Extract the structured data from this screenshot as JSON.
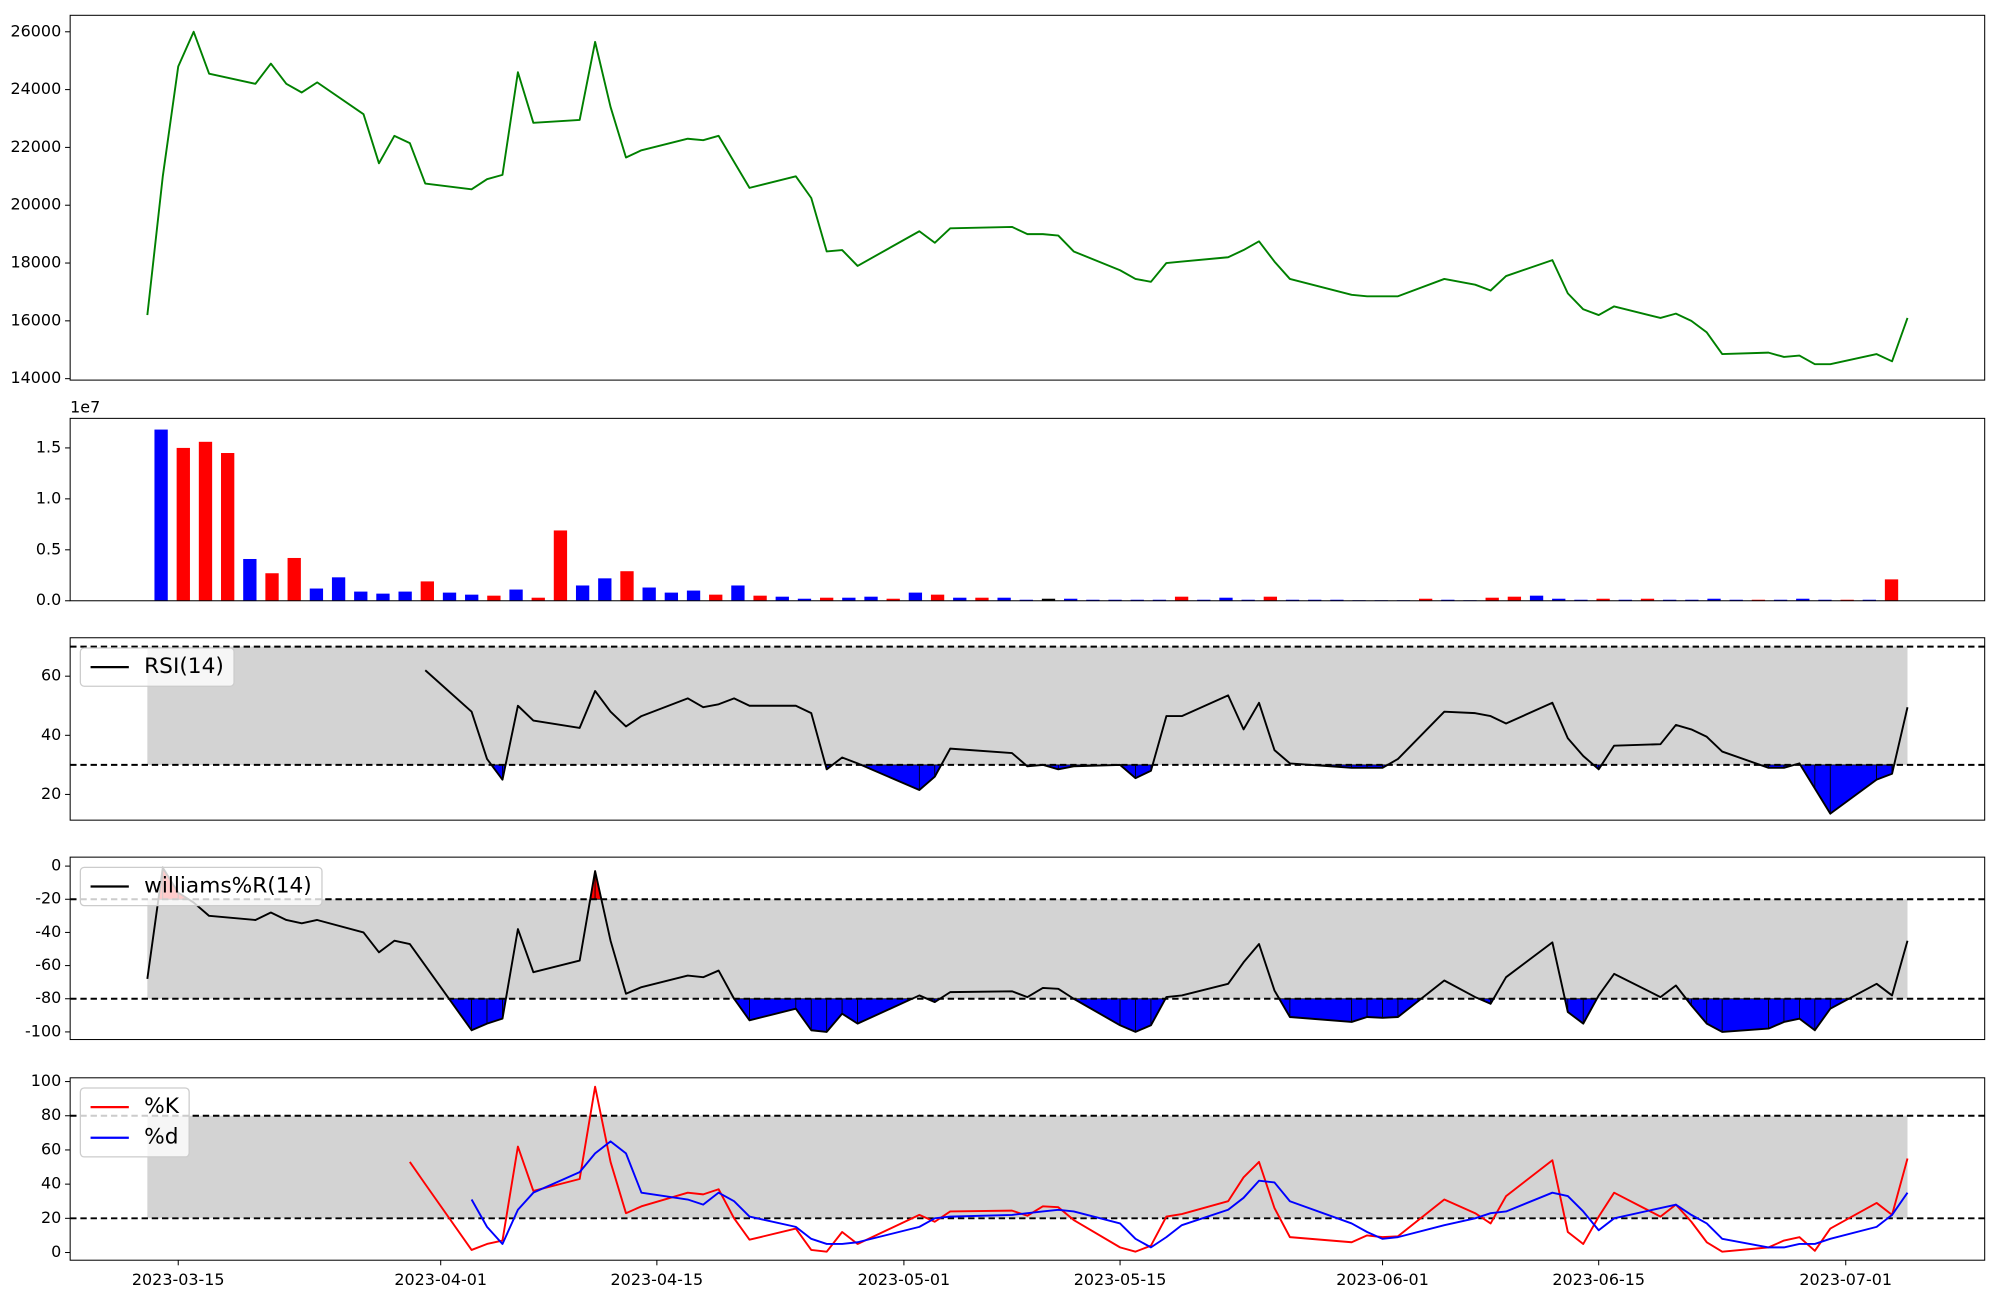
{
  "chart_data": [
    {
      "type": "line",
      "x": [
        "2023-03-13",
        "2023-03-14",
        "2023-03-15",
        "2023-03-16",
        "2023-03-17",
        "2023-03-20",
        "2023-03-21",
        "2023-03-22",
        "2023-03-23",
        "2023-03-24",
        "2023-03-27",
        "2023-03-28",
        "2023-03-29",
        "2023-03-30",
        "2023-03-31",
        "2023-04-03",
        "2023-04-04",
        "2023-04-05",
        "2023-04-06",
        "2023-04-07",
        "2023-04-10",
        "2023-04-11",
        "2023-04-12",
        "2023-04-13",
        "2023-04-14",
        "2023-04-17",
        "2023-04-18",
        "2023-04-19",
        "2023-04-20",
        "2023-04-21",
        "2023-04-24",
        "2023-04-25",
        "2023-04-26",
        "2023-04-27",
        "2023-04-28",
        "2023-05-02",
        "2023-05-03",
        "2023-05-04",
        "2023-05-08",
        "2023-05-09",
        "2023-05-10",
        "2023-05-11",
        "2023-05-12",
        "2023-05-15",
        "2023-05-16",
        "2023-05-17",
        "2023-05-18",
        "2023-05-19",
        "2023-05-22",
        "2023-05-23",
        "2023-05-24",
        "2023-05-25",
        "2023-05-26",
        "2023-05-30",
        "2023-05-31",
        "2023-06-01",
        "2023-06-02",
        "2023-06-05",
        "2023-06-07",
        "2023-06-08",
        "2023-06-09",
        "2023-06-12",
        "2023-06-13",
        "2023-06-14",
        "2023-06-15",
        "2023-06-16",
        "2023-06-19",
        "2023-06-20",
        "2023-06-21",
        "2023-06-22",
        "2023-06-23",
        "2023-06-26",
        "2023-06-27",
        "2023-06-28",
        "2023-06-29",
        "2023-06-30",
        "2023-07-03",
        "2023-07-04",
        "2023-07-05"
      ],
      "values": [
        16200,
        21000,
        24800,
        26000,
        24550,
        24200,
        24900,
        24200,
        23900,
        24250,
        23150,
        21450,
        22400,
        22150,
        20750,
        20550,
        20900,
        21050,
        24600,
        22850,
        22950,
        25650,
        23400,
        21650,
        21900,
        22300,
        22250,
        22400,
        21500,
        20600,
        21000,
        20250,
        18400,
        18450,
        17900,
        19100,
        18700,
        19200,
        19250,
        19000,
        19000,
        18950,
        18400,
        17750,
        17450,
        17350,
        18000,
        18050,
        18200,
        18450,
        18750,
        18050,
        17450,
        16900,
        16850,
        16850,
        16850,
        17450,
        17250,
        17050,
        17550,
        18100,
        16950,
        16400,
        16200,
        16500,
        16100,
        16250,
        16000,
        15600,
        14850,
        14900,
        14750,
        14800,
        14500,
        14500,
        14850,
        14600,
        16100
      ],
      "color": "#008000",
      "xlim": [
        "2023-03-08",
        "2023-07-10"
      ],
      "ylim": [
        13950,
        26570
      ],
      "yticks": [
        14000,
        16000,
        18000,
        20000,
        22000,
        24000,
        26000
      ]
    },
    {
      "type": "bar",
      "values": [
        16800000,
        15000000,
        15600000,
        14500000,
        4100000,
        2700000,
        4200000,
        1200000,
        2300000,
        900000,
        700000,
        900000,
        1900000,
        800000,
        600000,
        500000,
        1100000,
        300000,
        6900000,
        1500000,
        2200000,
        2900000,
        1300000,
        800000,
        1000000,
        600000,
        1500000,
        500000,
        400000,
        200000,
        300000,
        300000,
        400000,
        200000,
        800000,
        600000,
        300000,
        300000,
        300000,
        100000,
        200000,
        200000,
        100000,
        100000,
        100000,
        100000,
        400000,
        100000,
        300000,
        100000,
        400000,
        100000,
        100000,
        100000,
        50000,
        50000,
        50000,
        200000,
        100000,
        50000,
        300000,
        400000,
        500000,
        200000,
        100000,
        200000,
        100000,
        200000,
        100000,
        100000,
        200000,
        100000,
        100000,
        100000,
        200000,
        100000,
        100000,
        100000,
        2100000
      ],
      "colors": [
        "#0000ff",
        "#ff0000",
        "#ff0000",
        "#ff0000",
        "#0000ff",
        "#ff0000",
        "#ff0000",
        "#0000ff",
        "#0000ff",
        "#0000ff",
        "#0000ff",
        "#0000ff",
        "#ff0000",
        "#0000ff",
        "#0000ff",
        "#ff0000",
        "#0000ff",
        "#ff0000",
        "#ff0000",
        "#0000ff",
        "#0000ff",
        "#ff0000",
        "#0000ff",
        "#0000ff",
        "#0000ff",
        "#ff0000",
        "#0000ff",
        "#ff0000",
        "#0000ff",
        "#0000ff",
        "#ff0000",
        "#0000ff",
        "#0000ff",
        "#ff0000",
        "#0000ff",
        "#ff0000",
        "#0000ff",
        "#ff0000",
        "#0000ff",
        "#0000ff",
        "#000000",
        "#0000ff",
        "#0000ff",
        "#0000ff",
        "#0000ff",
        "#0000ff",
        "#ff0000",
        "#0000ff",
        "#0000ff",
        "#0000ff",
        "#ff0000",
        "#0000ff",
        "#0000ff",
        "#0000ff",
        "#0000ff",
        "#0000ff",
        "#0000ff",
        "#ff0000",
        "#0000ff",
        "#0000ff",
        "#ff0000",
        "#ff0000",
        "#0000ff",
        "#0000ff",
        "#0000ff",
        "#ff0000",
        "#0000ff",
        "#ff0000",
        "#0000ff",
        "#0000ff",
        "#0000ff",
        "#0000ff",
        "#ff0000",
        "#0000ff",
        "#0000ff",
        "#0000ff",
        "#ff0000",
        "#0000ff",
        "#ff0000"
      ],
      "xlim": [
        -4.1,
        82.2
      ],
      "ylim": [
        0,
        17900000
      ],
      "yticks": [
        {
          "value": 0,
          "label": "0.0"
        },
        {
          "value": 5000000,
          "label": "0.5"
        },
        {
          "value": 10000000,
          "label": "1.0"
        },
        {
          "value": 15000000,
          "label": "1.5"
        }
      ],
      "offset_label": "1e7"
    },
    {
      "type": "line",
      "series": [
        {
          "name": "RSI(14)",
          "color": "#000000",
          "values": [
            null,
            null,
            null,
            null,
            null,
            null,
            null,
            null,
            null,
            null,
            null,
            null,
            null,
            null,
            62,
            48,
            32,
            25,
            50,
            45,
            42.5,
            55,
            48,
            43,
            46.5,
            52.5,
            49.5,
            50.5,
            52.5,
            50,
            50,
            47.5,
            28.5,
            32.5,
            30.5,
            21.5,
            26,
            35.5,
            34,
            29.5,
            30,
            28.5,
            29.5,
            30,
            25.5,
            28,
            46.5,
            46.5,
            53.5,
            42,
            51,
            35,
            30.5,
            29,
            29,
            29,
            32,
            48,
            47.5,
            46.5,
            44,
            51,
            39,
            33,
            28.5,
            36.5,
            37,
            43.5,
            42,
            39.5,
            34.5,
            29,
            29,
            30.5,
            22,
            13.5,
            25,
            27,
            49.5
          ]
        }
      ],
      "ylim": [
        11.3,
        73
      ],
      "yticks": [
        20,
        40,
        60
      ],
      "thresholds": [
        70,
        30
      ],
      "band_color": "#d3d3d3",
      "fill_below": "#0000ff",
      "legend": "upper left"
    },
    {
      "type": "line",
      "series": [
        {
          "name": "williams%R(14)",
          "color": "#000000",
          "values": [
            -68,
            -1,
            -16,
            -22,
            -30,
            -32.5,
            -28,
            -32.5,
            -34.5,
            -32.5,
            -40,
            -52,
            -45,
            -47,
            -60,
            -99,
            -95,
            -92,
            -38,
            -64,
            -57,
            -3,
            -45,
            -77,
            -73,
            -66,
            -67,
            -63,
            -80,
            -93,
            -86,
            -99,
            -100,
            -89,
            -95,
            -78,
            -82,
            -76,
            -75.5,
            -79,
            -73.5,
            -74,
            -80,
            -96,
            -100,
            -96,
            -79,
            -78,
            -71,
            -58,
            -47,
            -75,
            -91,
            -94,
            -91,
            -91.5,
            -91,
            -69,
            -79,
            -83,
            -67,
            -46,
            -88,
            -95,
            -78,
            -65,
            -79,
            -72,
            -84,
            -95,
            -100,
            -98,
            -94,
            -92,
            -99,
            -86,
            -71,
            -78,
            -45
          ]
        }
      ],
      "ylim": [
        -104.6,
        5.4
      ],
      "yticks": [
        -100,
        -80,
        -60,
        -40,
        -20,
        0
      ],
      "thresholds": [
        -20,
        -80
      ],
      "band_color": "#d3d3d3",
      "fill_above": "#ff0000",
      "fill_below": "#0000ff",
      "legend": "upper left"
    },
    {
      "type": "line",
      "series": [
        {
          "name": "%K",
          "color": "#ff0000",
          "values": [
            null,
            null,
            null,
            null,
            null,
            null,
            null,
            null,
            null,
            null,
            null,
            null,
            null,
            53,
            40,
            1.5,
            5,
            7,
            62,
            36,
            43,
            97,
            53,
            23,
            27,
            35,
            34,
            37,
            20,
            7.5,
            14,
            1.5,
            0.5,
            12,
            5,
            22,
            18,
            24,
            24.5,
            21.5,
            27,
            26.5,
            19,
            3,
            0.5,
            4,
            21,
            22.5,
            30,
            44,
            53,
            26,
            9,
            6,
            10,
            9,
            9.5,
            31,
            23,
            17,
            33,
            54,
            12,
            5,
            21,
            35,
            21,
            28,
            18,
            6,
            0.5,
            3,
            7,
            9,
            1,
            14,
            29,
            22,
            55
          ]
        },
        {
          "name": "%d",
          "color": "#0000ff",
          "values": [
            null,
            null,
            null,
            null,
            null,
            null,
            null,
            null,
            null,
            null,
            null,
            null,
            null,
            null,
            null,
            31,
            15,
            5,
            25,
            35,
            47,
            58,
            65,
            58,
            35,
            31,
            28,
            35,
            30,
            21,
            15,
            8,
            5,
            5,
            6,
            15,
            20,
            21,
            22,
            23,
            24,
            25,
            24,
            17,
            8,
            3,
            9,
            16,
            25,
            32,
            42,
            41,
            30,
            17,
            12,
            8,
            9,
            16,
            20,
            23,
            24,
            35,
            33,
            24,
            13,
            20,
            26,
            28,
            22,
            17,
            8,
            3,
            3,
            5,
            5,
            8,
            15,
            22,
            35
          ]
        }
      ],
      "ylim": [
        -4.5,
        102.2
      ],
      "yticks": [
        0,
        20,
        40,
        60,
        80,
        100
      ],
      "thresholds": [
        80,
        20
      ],
      "band_color": "#d3d3d3",
      "legend": "upper left",
      "xticks": [
        "2023-03-15",
        "2023-04-01",
        "2023-04-15",
        "2023-05-01",
        "2023-05-15",
        "2023-06-01",
        "2023-06-15",
        "2023-07-01"
      ]
    }
  ]
}
